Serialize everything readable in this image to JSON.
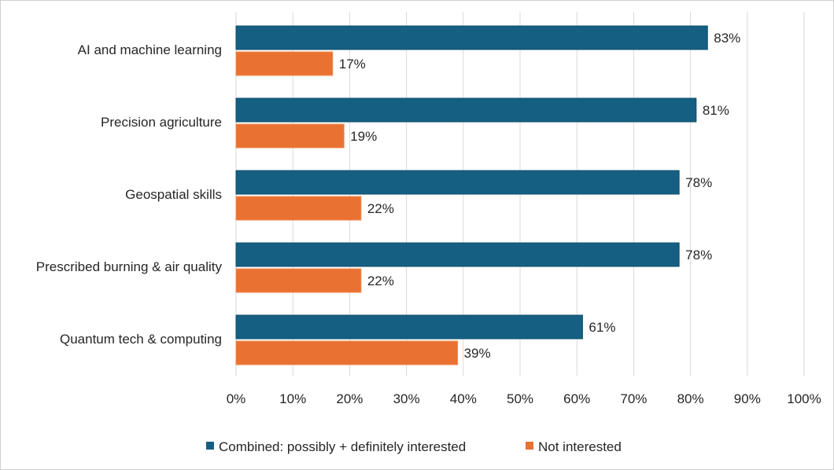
{
  "chart_data": {
    "type": "bar",
    "orientation": "horizontal",
    "title": "",
    "xlabel": "",
    "ylabel": "",
    "categories": [
      "AI and machine learning",
      "Precision agriculture",
      "Geospatial skills",
      "Prescribed burning & air quality",
      "Quantum tech & computing"
    ],
    "series": [
      {
        "name": "Combined: possibly + definitely interested",
        "color": "#156082",
        "values": [
          83,
          81,
          78,
          78,
          61
        ],
        "labels": [
          "83%",
          "81%",
          "78%",
          "78%",
          "61%"
        ]
      },
      {
        "name": "Not interested",
        "color": "#E97132",
        "values": [
          17,
          19,
          22,
          22,
          39
        ],
        "labels": [
          "17%",
          "19%",
          "22%",
          "22%",
          "39%"
        ]
      }
    ],
    "xlim": [
      0,
      100
    ],
    "xticks": [
      "0%",
      "10%",
      "20%",
      "30%",
      "40%",
      "50%",
      "60%",
      "70%",
      "80%",
      "90%",
      "100%"
    ],
    "grid": true,
    "legend_position": "bottom"
  }
}
